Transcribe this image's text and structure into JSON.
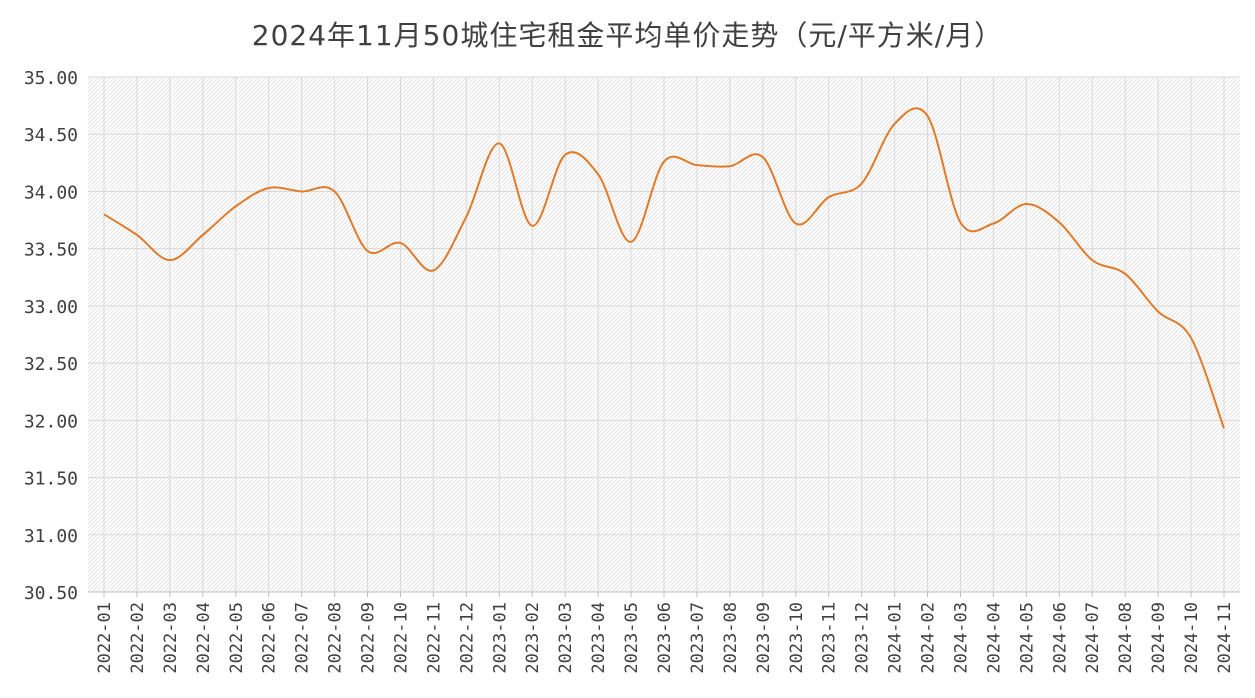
{
  "chart_data": {
    "type": "line",
    "title": "2024年11月50城住宅租金平均单价走势（元/平方米/月）",
    "xlabel": "",
    "ylabel": "",
    "ylim": [
      30.5,
      35.0
    ],
    "yticks": [
      "35.00",
      "34.50",
      "34.00",
      "33.50",
      "33.00",
      "32.50",
      "32.00",
      "31.50",
      "31.00",
      "30.50"
    ],
    "grid": true,
    "legend": "none",
    "line_color": "#E07B2A",
    "categories": [
      "2022-01",
      "2022-02",
      "2022-03",
      "2022-04",
      "2022-05",
      "2022-06",
      "2022-07",
      "2022-08",
      "2022-09",
      "2022-10",
      "2022-11",
      "2022-12",
      "2023-01",
      "2023-02",
      "2023-03",
      "2023-04",
      "2023-05",
      "2023-06",
      "2023-07",
      "2023-08",
      "2023-09",
      "2023-10",
      "2023-11",
      "2023-12",
      "2024-01",
      "2024-02",
      "2024-03",
      "2024-04",
      "2024-05",
      "2024-06",
      "2024-07",
      "2024-08",
      "2024-09",
      "2024-10",
      "2024-11"
    ],
    "series": [
      {
        "values": [
          33.8,
          33.62,
          33.4,
          33.62,
          33.87,
          34.03,
          34.0,
          34.0,
          33.48,
          33.55,
          33.31,
          33.78,
          34.42,
          33.7,
          34.32,
          34.15,
          33.56,
          34.26,
          34.23,
          34.22,
          34.3,
          33.72,
          33.95,
          34.07,
          34.59,
          34.66,
          33.73,
          33.72,
          33.89,
          33.73,
          33.4,
          33.28,
          32.95,
          32.72,
          31.93
        ]
      }
    ]
  }
}
